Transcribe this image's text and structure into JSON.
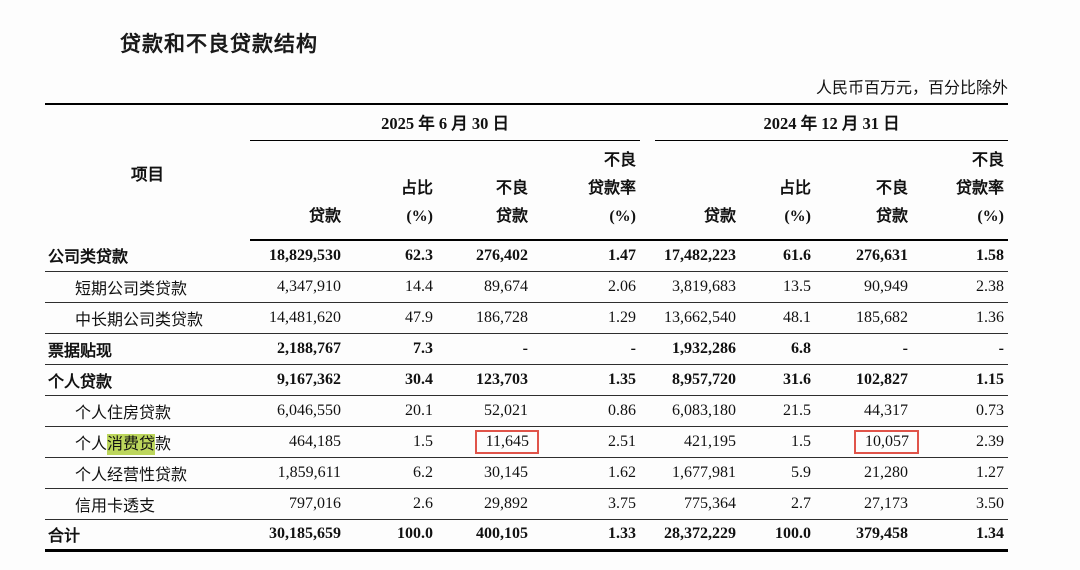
{
  "page": {
    "title": "贷款和不良贷款结构",
    "unit_note": "人民币百万元，百分比除外"
  },
  "table": {
    "item_header": "项目",
    "period_groups": [
      {
        "label": "2025 年 6 月 30 日"
      },
      {
        "label": "2024 年 12 月 31 日"
      }
    ],
    "column_headers": [
      "贷款",
      "占比\n(%)",
      "不良\n贷款",
      "不良\n贷款率\n(%)"
    ],
    "colors": {
      "highlight": "#bcd65c",
      "annotation_box": "#e0544a"
    },
    "rows": [
      {
        "label": "公司类贷款",
        "bold": true,
        "indent": false,
        "values": [
          "18,829,530",
          "62.3",
          "276,402",
          "1.47",
          "17,482,223",
          "61.6",
          "276,631",
          "1.58"
        ]
      },
      {
        "label": "短期公司类贷款",
        "bold": false,
        "indent": true,
        "values": [
          "4,347,910",
          "14.4",
          "89,674",
          "2.06",
          "3,819,683",
          "13.5",
          "90,949",
          "2.38"
        ]
      },
      {
        "label": "中长期公司类贷款",
        "bold": false,
        "indent": true,
        "values": [
          "14,481,620",
          "47.9",
          "186,728",
          "1.29",
          "13,662,540",
          "48.1",
          "185,682",
          "1.36"
        ]
      },
      {
        "label": "票据贴现",
        "bold": true,
        "indent": false,
        "values": [
          "2,188,767",
          "7.3",
          "-",
          "-",
          "1,932,286",
          "6.8",
          "-",
          "-"
        ]
      },
      {
        "label": "个人贷款",
        "bold": true,
        "indent": false,
        "values": [
          "9,167,362",
          "30.4",
          "123,703",
          "1.35",
          "8,957,720",
          "31.6",
          "102,827",
          "1.15"
        ]
      },
      {
        "label": "个人住房贷款",
        "bold": false,
        "indent": true,
        "values": [
          "6,046,550",
          "20.1",
          "52,021",
          "0.86",
          "6,083,180",
          "21.5",
          "44,317",
          "0.73"
        ]
      },
      {
        "label": "个人消费贷款",
        "bold": false,
        "indent": true,
        "highlight": "消费贷",
        "values": [
          "464,185",
          "1.5",
          "11,645",
          "2.51",
          "421,195",
          "1.5",
          "10,057",
          "2.39"
        ],
        "boxed_value_indices": [
          2,
          6
        ]
      },
      {
        "label": "个人经营性贷款",
        "bold": false,
        "indent": true,
        "values": [
          "1,859,611",
          "6.2",
          "30,145",
          "1.62",
          "1,677,981",
          "5.9",
          "21,280",
          "1.27"
        ]
      },
      {
        "label": "信用卡透支",
        "bold": false,
        "indent": true,
        "values": [
          "797,016",
          "2.6",
          "29,892",
          "3.75",
          "775,364",
          "2.7",
          "27,173",
          "3.50"
        ]
      },
      {
        "label": "合计",
        "bold": true,
        "indent": false,
        "total": true,
        "values": [
          "30,185,659",
          "100.0",
          "400,105",
          "1.33",
          "28,372,229",
          "100.0",
          "379,458",
          "1.34"
        ]
      }
    ]
  }
}
